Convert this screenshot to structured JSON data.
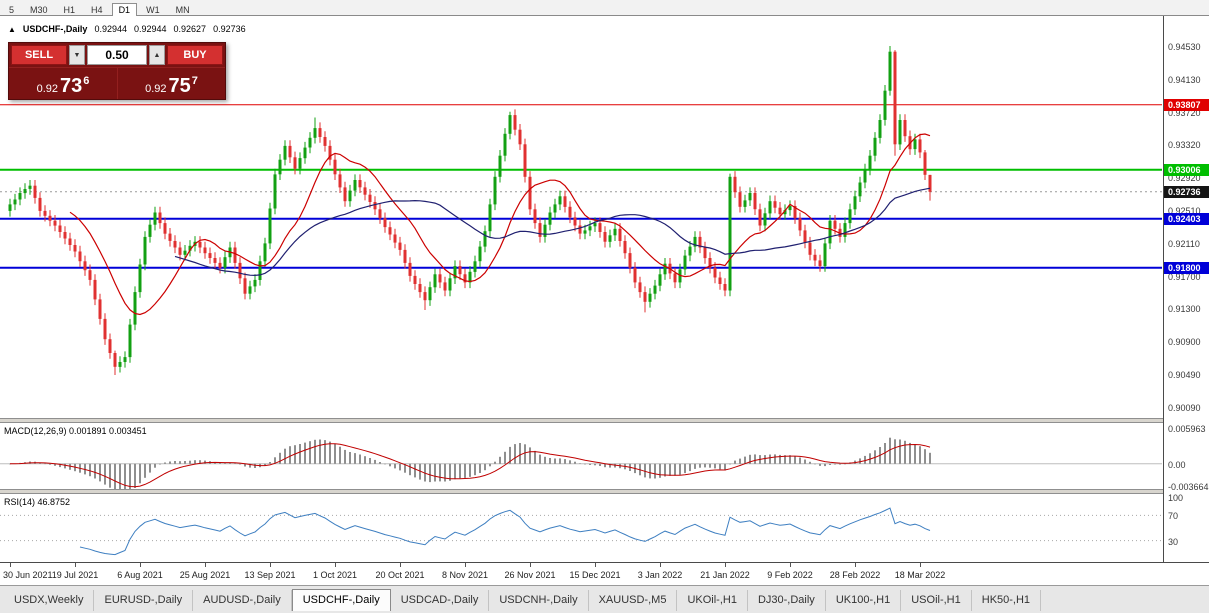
{
  "timeframe_toolbar": {
    "buttons": [
      "5",
      "M30",
      "H1",
      "H4",
      "D1",
      "W1",
      "MN"
    ],
    "active": "D1"
  },
  "chart_header": {
    "icon": "▲",
    "title": "USDCHF-,Daily",
    "ohlc": {
      "open": "0.92944",
      "high": "0.92944",
      "low": "0.92627",
      "close": "0.92736"
    }
  },
  "trade_panel": {
    "sell_button": "SELL",
    "buy_button": "BUY",
    "volume": "0.50",
    "volume_down_glyph": "▼",
    "volume_up_glyph": "▲",
    "sell_price": {
      "prefix": "0.92",
      "big": "73",
      "sup": "6"
    },
    "buy_price": {
      "prefix": "0.92",
      "big": "75",
      "sup": "7"
    }
  },
  "chart_data": {
    "type": "candlestick",
    "symbol": "USDCHF-",
    "timeframe": "Daily",
    "ohlc_display": [
      0.92944,
      0.92944,
      0.92627,
      0.92736
    ],
    "colors": {
      "up": "#13A013",
      "down": "#E03131",
      "background": "#FFFFFF"
    },
    "y_axis": {
      "range": [
        0.8995,
        0.949
      ],
      "ticks": [
        "0.94530",
        "0.94130",
        "0.93720",
        "0.93320",
        "0.92920",
        "0.92510",
        "0.92110",
        "0.91700",
        "0.91300",
        "0.90900",
        "0.90490",
        "0.90090"
      ]
    },
    "x_axis": {
      "labels": [
        "30 Jun 2021",
        "19 Jul 2021",
        "6 Aug 2021",
        "25 Aug 2021",
        "13 Sep 2021",
        "1 Oct 2021",
        "20 Oct 2021",
        "8 Nov 2021",
        "26 Nov 2021",
        "15 Dec 2021",
        "3 Jan 2022",
        "21 Jan 2022",
        "9 Feb 2022",
        "28 Feb 2022",
        "18 Mar 2022"
      ],
      "label_indices": [
        0,
        13,
        26,
        39,
        52,
        65,
        78,
        91,
        104,
        117,
        130,
        143,
        156,
        169,
        182
      ]
    },
    "price_lines": [
      {
        "price": 0.93807,
        "label": "0.93807",
        "color": "#E00000",
        "width": 1
      },
      {
        "price": 0.93006,
        "label": "0.93006",
        "color": "#00BE00",
        "width": 2
      },
      {
        "price": 0.92736,
        "label": "0.92736",
        "color": "#9a9a9a",
        "width": 1,
        "dotted": true,
        "tag": "#141414"
      },
      {
        "price": 0.92403,
        "label": "0.92403",
        "color": "#0000D8",
        "width": 2
      },
      {
        "price": 0.918,
        "label": "0.91800",
        "color": "#0000D8",
        "width": 2
      }
    ],
    "moving_averages": [
      {
        "period": 13,
        "color": "#CC0000"
      },
      {
        "period": 34,
        "color": "#202070"
      }
    ],
    "macd": {
      "label": "MACD(12,26,9) 0.001891 0.003451",
      "params": [
        12,
        26,
        9
      ],
      "values_text": [
        "0.001891",
        "0.003451"
      ],
      "range": [
        -0.0042,
        0.0068
      ],
      "ticks": [
        {
          "v": 0.005963,
          "label": "0.005963"
        },
        {
          "v": 0,
          "label": "0.00"
        },
        {
          "v": -0.003664,
          "label": "-0.003664"
        }
      ],
      "histogram_color": "#8f8f8f",
      "signal_color": "#C00000"
    },
    "rsi": {
      "label": "RSI(14) 46.8752",
      "period": 14,
      "value_text": "46.8752",
      "range": [
        -4,
        104
      ],
      "ticks": [
        {
          "v": 100,
          "label": "100"
        },
        {
          "v": 70,
          "label": "70"
        },
        {
          "v": 30,
          "label": "30"
        }
      ],
      "levels": [
        70,
        30
      ],
      "line_color": "#3E7FC1"
    },
    "candles": [
      [
        0.925,
        0.9265,
        0.9243,
        0.9258
      ],
      [
        0.9258,
        0.9271,
        0.9251,
        0.9264
      ],
      [
        0.9264,
        0.9279,
        0.9257,
        0.9272
      ],
      [
        0.9272,
        0.9284,
        0.9265,
        0.9277
      ],
      [
        0.9277,
        0.9288,
        0.927,
        0.9281
      ],
      [
        0.9281,
        0.9288,
        0.9259,
        0.9266
      ],
      [
        0.9266,
        0.9273,
        0.9243,
        0.925
      ],
      [
        0.925,
        0.9257,
        0.9237,
        0.9244
      ],
      [
        0.9244,
        0.9251,
        0.9231,
        0.9238
      ],
      [
        0.9238,
        0.9245,
        0.9225,
        0.9232
      ],
      [
        0.9232,
        0.9239,
        0.9217,
        0.9224
      ],
      [
        0.9224,
        0.9231,
        0.9209,
        0.9216
      ],
      [
        0.9216,
        0.9223,
        0.9201,
        0.9208
      ],
      [
        0.9208,
        0.9215,
        0.9193,
        0.92
      ],
      [
        0.92,
        0.9207,
        0.9181,
        0.9188
      ],
      [
        0.9188,
        0.9195,
        0.917,
        0.9177
      ],
      [
        0.9177,
        0.9184,
        0.9158,
        0.9165
      ],
      [
        0.9165,
        0.9172,
        0.9134,
        0.9141
      ],
      [
        0.9141,
        0.9148,
        0.911,
        0.9117
      ],
      [
        0.9117,
        0.9124,
        0.9085,
        0.9092
      ],
      [
        0.9092,
        0.9099,
        0.9068,
        0.9075
      ],
      [
        0.9075,
        0.9078,
        0.9048,
        0.9058
      ],
      [
        0.9058,
        0.9071,
        0.9051,
        0.9064
      ],
      [
        0.9064,
        0.9077,
        0.9057,
        0.907
      ],
      [
        0.907,
        0.9117,
        0.9063,
        0.911
      ],
      [
        0.911,
        0.9157,
        0.9103,
        0.915
      ],
      [
        0.915,
        0.9191,
        0.9143,
        0.9184
      ],
      [
        0.9184,
        0.9225,
        0.9177,
        0.9218
      ],
      [
        0.9218,
        0.924,
        0.9211,
        0.9233
      ],
      [
        0.9233,
        0.9255,
        0.9226,
        0.9248
      ],
      [
        0.9248,
        0.9255,
        0.9228,
        0.9235
      ],
      [
        0.9235,
        0.9242,
        0.9215,
        0.9222
      ],
      [
        0.9222,
        0.9229,
        0.9206,
        0.9213
      ],
      [
        0.9213,
        0.922,
        0.9198,
        0.9205
      ],
      [
        0.9205,
        0.9212,
        0.9189,
        0.9196
      ],
      [
        0.9196,
        0.9208,
        0.9189,
        0.9201
      ],
      [
        0.9201,
        0.9214,
        0.9194,
        0.9207
      ],
      [
        0.9207,
        0.9219,
        0.92,
        0.9212
      ],
      [
        0.9212,
        0.9219,
        0.9198,
        0.9205
      ],
      [
        0.9205,
        0.9212,
        0.9191,
        0.9198
      ],
      [
        0.9198,
        0.9205,
        0.9185,
        0.9192
      ],
      [
        0.9192,
        0.9199,
        0.9179,
        0.9186
      ],
      [
        0.9186,
        0.9193,
        0.9173,
        0.918
      ],
      [
        0.918,
        0.92,
        0.9173,
        0.9193
      ],
      [
        0.9193,
        0.9212,
        0.9186,
        0.9205
      ],
      [
        0.9205,
        0.9212,
        0.9179,
        0.9186
      ],
      [
        0.9186,
        0.9193,
        0.916,
        0.9167
      ],
      [
        0.9167,
        0.9174,
        0.9141,
        0.9148
      ],
      [
        0.9148,
        0.9164,
        0.9141,
        0.9157
      ],
      [
        0.9157,
        0.9172,
        0.915,
        0.9165
      ],
      [
        0.9165,
        0.9195,
        0.9158,
        0.9188
      ],
      [
        0.9188,
        0.9217,
        0.9181,
        0.921
      ],
      [
        0.921,
        0.926,
        0.9203,
        0.9253
      ],
      [
        0.9253,
        0.9302,
        0.9246,
        0.9295
      ],
      [
        0.9295,
        0.932,
        0.9288,
        0.9313
      ],
      [
        0.9313,
        0.9337,
        0.9306,
        0.933
      ],
      [
        0.933,
        0.9337,
        0.9309,
        0.9316
      ],
      [
        0.9316,
        0.9323,
        0.9295,
        0.9302
      ],
      [
        0.9302,
        0.9322,
        0.9295,
        0.9315
      ],
      [
        0.9315,
        0.9335,
        0.9308,
        0.9328
      ],
      [
        0.9328,
        0.9347,
        0.9321,
        0.934
      ],
      [
        0.934,
        0.9365,
        0.9333,
        0.9352
      ],
      [
        0.9352,
        0.9359,
        0.9334,
        0.9341
      ],
      [
        0.9341,
        0.9348,
        0.9323,
        0.933
      ],
      [
        0.933,
        0.9337,
        0.9306,
        0.9313
      ],
      [
        0.9313,
        0.932,
        0.9288,
        0.9295
      ],
      [
        0.9295,
        0.9302,
        0.9272,
        0.9279
      ],
      [
        0.9279,
        0.9286,
        0.9255,
        0.9262
      ],
      [
        0.9262,
        0.9282,
        0.9255,
        0.9275
      ],
      [
        0.9275,
        0.9295,
        0.9268,
        0.9288
      ],
      [
        0.9288,
        0.9295,
        0.9272,
        0.9279
      ],
      [
        0.9279,
        0.9286,
        0.9263,
        0.927
      ],
      [
        0.927,
        0.9277,
        0.9254,
        0.9261
      ],
      [
        0.9261,
        0.9268,
        0.9245,
        0.9252
      ],
      [
        0.9252,
        0.9259,
        0.9234,
        0.9241
      ],
      [
        0.9241,
        0.9248,
        0.9223,
        0.923
      ],
      [
        0.923,
        0.9237,
        0.9214,
        0.9221
      ],
      [
        0.9221,
        0.9228,
        0.9204,
        0.9211
      ],
      [
        0.9211,
        0.9218,
        0.9195,
        0.9202
      ],
      [
        0.9202,
        0.9209,
        0.9179,
        0.9186
      ],
      [
        0.9186,
        0.9193,
        0.9163,
        0.917
      ],
      [
        0.917,
        0.9177,
        0.9153,
        0.916
      ],
      [
        0.916,
        0.9167,
        0.9143,
        0.915
      ],
      [
        0.915,
        0.9157,
        0.9128,
        0.914
      ],
      [
        0.914,
        0.9163,
        0.9133,
        0.9156
      ],
      [
        0.9156,
        0.9179,
        0.9149,
        0.9172
      ],
      [
        0.9172,
        0.9179,
        0.9155,
        0.9162
      ],
      [
        0.9162,
        0.9169,
        0.9145,
        0.9152
      ],
      [
        0.9152,
        0.9174,
        0.9145,
        0.9167
      ],
      [
        0.9167,
        0.9189,
        0.916,
        0.9182
      ],
      [
        0.9182,
        0.9189,
        0.9165,
        0.9172
      ],
      [
        0.9172,
        0.9179,
        0.9155,
        0.9162
      ],
      [
        0.9162,
        0.9182,
        0.9155,
        0.9175
      ],
      [
        0.9175,
        0.9195,
        0.9168,
        0.9188
      ],
      [
        0.9188,
        0.9213,
        0.9181,
        0.9206
      ],
      [
        0.9206,
        0.9232,
        0.9199,
        0.9225
      ],
      [
        0.9225,
        0.9265,
        0.9218,
        0.9258
      ],
      [
        0.9258,
        0.9299,
        0.9251,
        0.9292
      ],
      [
        0.9292,
        0.9325,
        0.9285,
        0.9318
      ],
      [
        0.9318,
        0.9352,
        0.9311,
        0.9345
      ],
      [
        0.9345,
        0.9372,
        0.9338,
        0.9368
      ],
      [
        0.9368,
        0.9375,
        0.9343,
        0.935
      ],
      [
        0.935,
        0.9357,
        0.9325,
        0.9332
      ],
      [
        0.9332,
        0.9339,
        0.9285,
        0.9292
      ],
      [
        0.9292,
        0.9299,
        0.9245,
        0.9252
      ],
      [
        0.9252,
        0.9259,
        0.9228,
        0.9235
      ],
      [
        0.9235,
        0.9242,
        0.9211,
        0.9218
      ],
      [
        0.9218,
        0.924,
        0.9211,
        0.9233
      ],
      [
        0.9233,
        0.9255,
        0.9226,
        0.9248
      ],
      [
        0.9248,
        0.9265,
        0.9241,
        0.9258
      ],
      [
        0.9258,
        0.9275,
        0.9251,
        0.9268
      ],
      [
        0.9268,
        0.9275,
        0.9248,
        0.9255
      ],
      [
        0.9255,
        0.9262,
        0.9235,
        0.9242
      ],
      [
        0.9242,
        0.9249,
        0.9225,
        0.9232
      ],
      [
        0.9232,
        0.9239,
        0.9215,
        0.9222
      ],
      [
        0.9222,
        0.9233,
        0.9215,
        0.9226
      ],
      [
        0.9226,
        0.9238,
        0.9219,
        0.9231
      ],
      [
        0.9231,
        0.9242,
        0.9224,
        0.9235
      ],
      [
        0.9235,
        0.9242,
        0.9217,
        0.9224
      ],
      [
        0.9224,
        0.9231,
        0.9205,
        0.9212
      ],
      [
        0.9212,
        0.9227,
        0.9205,
        0.922
      ],
      [
        0.922,
        0.9235,
        0.9213,
        0.9228
      ],
      [
        0.9228,
        0.9235,
        0.9206,
        0.9213
      ],
      [
        0.9213,
        0.922,
        0.9191,
        0.9198
      ],
      [
        0.9198,
        0.9205,
        0.9173,
        0.918
      ],
      [
        0.918,
        0.9187,
        0.9155,
        0.9162
      ],
      [
        0.9162,
        0.9169,
        0.9143,
        0.915
      ],
      [
        0.915,
        0.9157,
        0.9125,
        0.9138
      ],
      [
        0.9138,
        0.9155,
        0.9131,
        0.9148
      ],
      [
        0.9148,
        0.9165,
        0.9141,
        0.9158
      ],
      [
        0.9158,
        0.9179,
        0.9151,
        0.9172
      ],
      [
        0.9172,
        0.9192,
        0.9165,
        0.9185
      ],
      [
        0.9185,
        0.9192,
        0.9166,
        0.9173
      ],
      [
        0.9173,
        0.918,
        0.9155,
        0.9162
      ],
      [
        0.9162,
        0.9185,
        0.9155,
        0.9178
      ],
      [
        0.9178,
        0.9202,
        0.9171,
        0.9195
      ],
      [
        0.9195,
        0.9213,
        0.9188,
        0.9206
      ],
      [
        0.9206,
        0.9225,
        0.9199,
        0.9218
      ],
      [
        0.9218,
        0.9225,
        0.9198,
        0.9205
      ],
      [
        0.9205,
        0.9212,
        0.9185,
        0.9192
      ],
      [
        0.9192,
        0.9199,
        0.9173,
        0.918
      ],
      [
        0.918,
        0.9187,
        0.9161,
        0.9168
      ],
      [
        0.9168,
        0.9175,
        0.9153,
        0.916
      ],
      [
        0.916,
        0.9167,
        0.9145,
        0.9152
      ],
      [
        0.9152,
        0.9296,
        0.9145,
        0.9292
      ],
      [
        0.9292,
        0.9299,
        0.9266,
        0.9273
      ],
      [
        0.9273,
        0.928,
        0.9248,
        0.9255
      ],
      [
        0.9255,
        0.927,
        0.9248,
        0.9263
      ],
      [
        0.9263,
        0.9279,
        0.9256,
        0.9272
      ],
      [
        0.9272,
        0.9279,
        0.9245,
        0.9252
      ],
      [
        0.9252,
        0.9259,
        0.9225,
        0.9232
      ],
      [
        0.9232,
        0.9254,
        0.9225,
        0.9247
      ],
      [
        0.9247,
        0.9269,
        0.924,
        0.9262
      ],
      [
        0.9262,
        0.9269,
        0.9247,
        0.9254
      ],
      [
        0.9254,
        0.9261,
        0.9239,
        0.9246
      ],
      [
        0.9246,
        0.9258,
        0.9239,
        0.9251
      ],
      [
        0.9251,
        0.9263,
        0.9244,
        0.9256
      ],
      [
        0.9256,
        0.9263,
        0.9234,
        0.9241
      ],
      [
        0.9241,
        0.9248,
        0.9219,
        0.9226
      ],
      [
        0.9226,
        0.9233,
        0.9204,
        0.9211
      ],
      [
        0.9211,
        0.9218,
        0.9189,
        0.9196
      ],
      [
        0.9196,
        0.9203,
        0.9182,
        0.9189
      ],
      [
        0.9189,
        0.9196,
        0.9175,
        0.9182
      ],
      [
        0.9182,
        0.9217,
        0.9175,
        0.921
      ],
      [
        0.921,
        0.9245,
        0.9203,
        0.9238
      ],
      [
        0.9238,
        0.9245,
        0.9221,
        0.9228
      ],
      [
        0.9228,
        0.9235,
        0.9211,
        0.9218
      ],
      [
        0.9218,
        0.9242,
        0.9211,
        0.9235
      ],
      [
        0.9235,
        0.9259,
        0.9228,
        0.9252
      ],
      [
        0.9252,
        0.9275,
        0.9245,
        0.9268
      ],
      [
        0.9268,
        0.9292,
        0.9261,
        0.9285
      ],
      [
        0.9285,
        0.9308,
        0.9278,
        0.9301
      ],
      [
        0.9301,
        0.9325,
        0.9294,
        0.9318
      ],
      [
        0.9318,
        0.9347,
        0.9311,
        0.934
      ],
      [
        0.934,
        0.9369,
        0.9333,
        0.9362
      ],
      [
        0.9362,
        0.9405,
        0.9355,
        0.9398
      ],
      [
        0.9398,
        0.9453,
        0.9392,
        0.9446
      ],
      [
        0.9446,
        0.9448,
        0.9318,
        0.9332
      ],
      [
        0.9332,
        0.9369,
        0.9325,
        0.9362
      ],
      [
        0.9362,
        0.9369,
        0.9335,
        0.9342
      ],
      [
        0.9342,
        0.9349,
        0.9319,
        0.9326
      ],
      [
        0.9326,
        0.9345,
        0.9319,
        0.9338
      ],
      [
        0.9338,
        0.9345,
        0.9315,
        0.9322
      ],
      [
        0.9322,
        0.9325,
        0.9288,
        0.92944
      ],
      [
        0.92944,
        0.92944,
        0.92627,
        0.92736
      ]
    ]
  },
  "bottom_tabs": {
    "tabs": [
      {
        "label": "USDX,Weekly",
        "active": false
      },
      {
        "label": "EURUSD-,Daily",
        "active": false
      },
      {
        "label": "AUDUSD-,Daily",
        "active": false
      },
      {
        "label": "USDCHF-,Daily",
        "active": true
      },
      {
        "label": "USDCAD-,Daily",
        "active": false
      },
      {
        "label": "USDCNH-,Daily",
        "active": false
      },
      {
        "label": "XAUUSD-,M5",
        "active": false
      },
      {
        "label": "UKOil-,H1",
        "active": false
      },
      {
        "label": "DJ30-,Daily",
        "active": false
      },
      {
        "label": "UK100-,H1",
        "active": false
      },
      {
        "label": "USOil-,H1",
        "active": false
      },
      {
        "label": "HK50-,H1",
        "active": false
      }
    ]
  }
}
